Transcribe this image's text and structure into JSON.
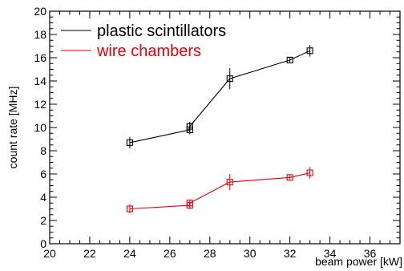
{
  "chart_data": {
    "type": "scatter",
    "xlabel": "beam power [kW]",
    "ylabel": "count rate [MHz]",
    "xlim": [
      20,
      37.5
    ],
    "ylim": [
      0,
      20
    ],
    "xticks": [
      20,
      22,
      24,
      26,
      28,
      30,
      32,
      34,
      36
    ],
    "yticks": [
      0,
      2,
      4,
      6,
      8,
      10,
      12,
      14,
      16,
      18,
      20
    ],
    "grid": false,
    "legend_position": "top-left",
    "series": [
      {
        "name": "plastic scintillators",
        "color": "#000000",
        "marker": "open-square",
        "points": [
          {
            "x": 24,
            "y": 8.7,
            "err": 0.5
          },
          {
            "x": 27,
            "y": 9.8,
            "err": 0.4
          },
          {
            "x": 27,
            "y": 10.1,
            "err": 0.4
          },
          {
            "x": 29,
            "y": 14.2,
            "err": 0.9
          },
          {
            "x": 32,
            "y": 15.8,
            "err": 0.2
          },
          {
            "x": 33,
            "y": 16.6,
            "err": 0.5
          }
        ]
      },
      {
        "name": "wire chambers",
        "color": "#e8000b",
        "marker": "open-square",
        "points": [
          {
            "x": 24,
            "y": 3.0,
            "err": 0.4
          },
          {
            "x": 27,
            "y": 3.3,
            "err": 0.3
          },
          {
            "x": 27,
            "y": 3.5,
            "err": 0.3
          },
          {
            "x": 29,
            "y": 5.3,
            "err": 0.7
          },
          {
            "x": 32,
            "y": 5.7,
            "err": 0.2
          },
          {
            "x": 33,
            "y": 6.1,
            "err": 0.5
          }
        ]
      }
    ]
  }
}
